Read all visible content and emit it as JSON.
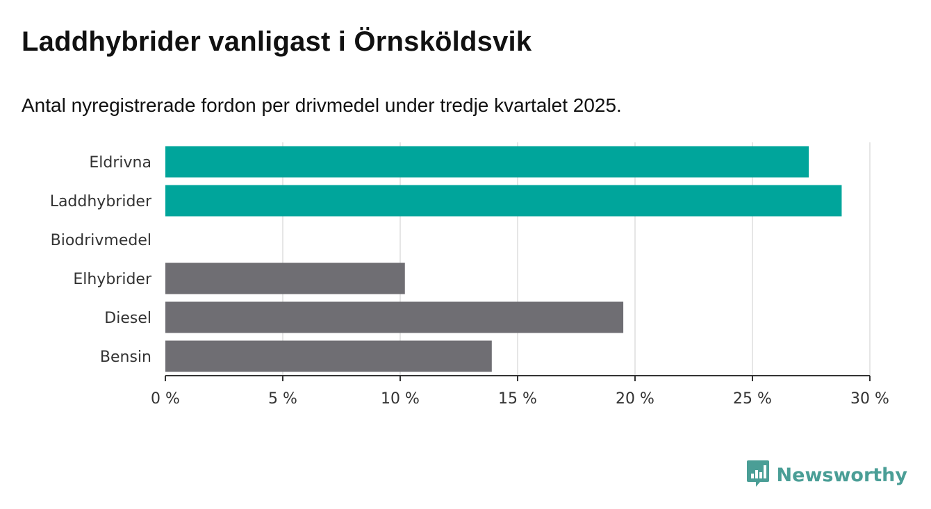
{
  "header": {
    "title": "Laddhybrider vanligast i Örnsköldsvik",
    "subtitle": "Antal nyregistrerade fordon per drivmedel under tredje kvartalet 2025."
  },
  "brand": {
    "name": "Newsworthy",
    "icon": "newsworthy-logo-icon",
    "color": "#4a9e96"
  },
  "colors": {
    "highlight": "#00a59b",
    "muted": "#6f6e73",
    "grid": "#dddddd",
    "axis": "#333333"
  },
  "chart_data": {
    "type": "bar",
    "orientation": "horizontal",
    "title": "Laddhybrider vanligast i Örnsköldsvik",
    "subtitle": "Antal nyregistrerade fordon per drivmedel under tredje kvartalet 2025.",
    "xlabel": "",
    "ylabel": "",
    "unit": "%",
    "xlim": [
      0,
      30
    ],
    "xticks": [
      0,
      5,
      10,
      15,
      20,
      25,
      30
    ],
    "tick_labels": [
      "0 %",
      "5 %",
      "10 %",
      "15 %",
      "20 %",
      "25 %",
      "30 %"
    ],
    "grid": true,
    "categories": [
      "Eldrivna",
      "Laddhybrider",
      "Biodrivmedel",
      "Elhybrider",
      "Diesel",
      "Bensin"
    ],
    "values": [
      27.4,
      28.8,
      0,
      10.2,
      19.5,
      13.9
    ],
    "highlight": [
      true,
      true,
      false,
      false,
      false,
      false
    ]
  }
}
